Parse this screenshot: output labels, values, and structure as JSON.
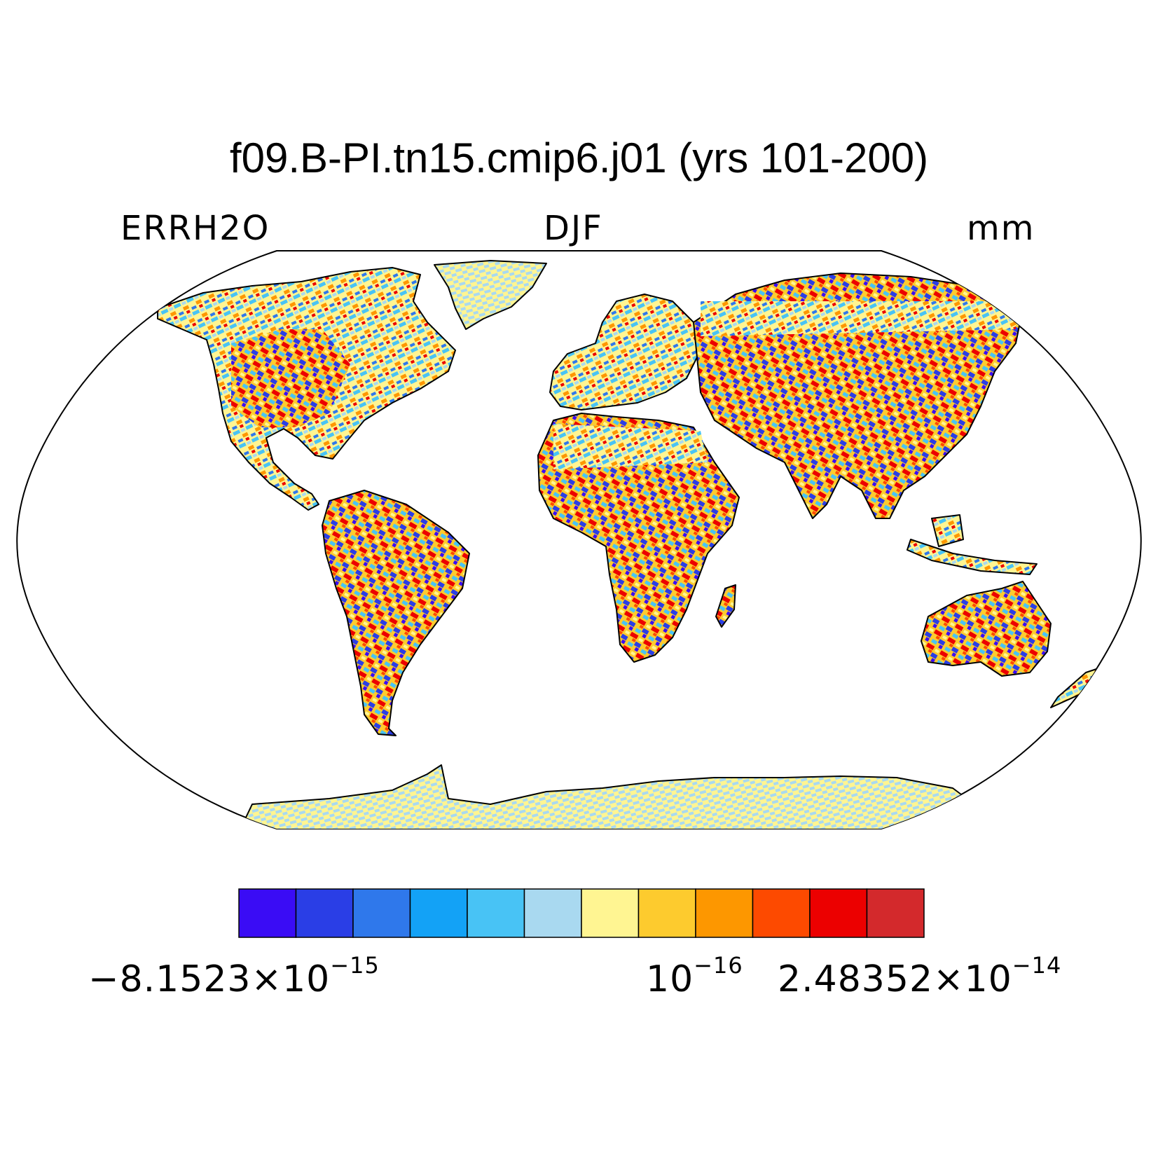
{
  "title": "f09.B-PI.tn15.cmip6.j01 (yrs 101-200)",
  "left_label": "ERRH2O",
  "center_label": "DJF",
  "right_label": "mm",
  "colorbar": {
    "colors": [
      "#3a0cf5",
      "#2a3ee6",
      "#2f78eb",
      "#13a2f6",
      "#48c3f5",
      "#a9d9f0",
      "#fff592",
      "#fdcb2e",
      "#fd9700",
      "#fd4a00",
      "#ec0000",
      "#d3292c"
    ],
    "labels": [
      {
        "mantissa": "−8.1523×10",
        "exponent": "−15"
      },
      {
        "mantissa": "10",
        "exponent": "−16"
      },
      {
        "mantissa": "2.48352×10",
        "exponent": "−14"
      }
    ]
  },
  "map": {
    "projection": "Robinson",
    "field_colors": {
      "ice": [
        "#a9d9f0",
        "#fff592"
      ]
    }
  }
}
